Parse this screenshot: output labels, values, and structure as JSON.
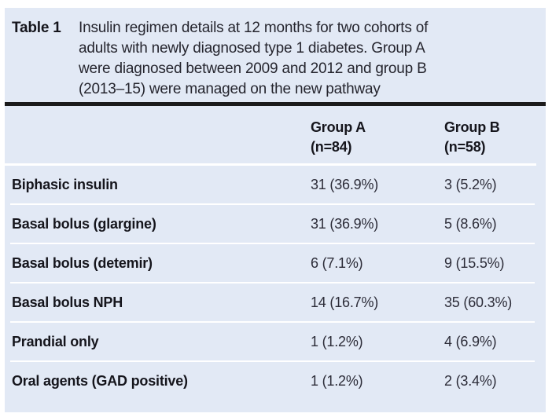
{
  "table": {
    "caption": {
      "label": "Table 1",
      "lines": [
        "Insulin regimen details at 12 months for two cohorts of",
        "adults with newly diagnosed type 1 diabetes. Group A",
        "were diagnosed between 2009 and 2012 and group B",
        "(2013–15) were managed on the new pathway"
      ]
    },
    "columns": [
      {
        "name": "Group A",
        "n": "(n=84)"
      },
      {
        "name": "Group B",
        "n": "(n=58)"
      }
    ],
    "rows": [
      {
        "label": "Biphasic insulin",
        "group_a": "31 (36.9%)",
        "group_b": "3 (5.2%)"
      },
      {
        "label": "Basal bolus (glargine)",
        "group_a": "31 (36.9%)",
        "group_b": "5 (8.6%)"
      },
      {
        "label": "Basal bolus (detemir)",
        "group_a": "6 (7.1%)",
        "group_b": "9 (15.5%)"
      },
      {
        "label": "Basal bolus NPH",
        "group_a": "14 (16.7%)",
        "group_b": "35 (60.3%)"
      },
      {
        "label": "Prandial only",
        "group_a": "1 (1.2%)",
        "group_b": "4 (6.9%)"
      },
      {
        "label": "Oral agents (GAD positive)",
        "group_a": "1 (1.2%)",
        "group_b": "2 (3.4%)"
      }
    ],
    "colors": {
      "table_background": "#e2e9f5",
      "heavy_rule": "#1b1b1b",
      "separator": "#ffffff",
      "text": "#15151c"
    }
  }
}
